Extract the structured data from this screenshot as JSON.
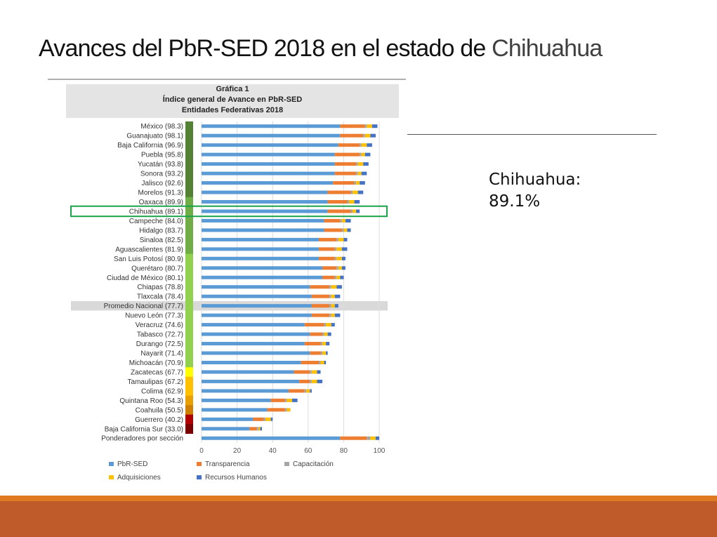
{
  "slide": {
    "title": "Avances del PbR-SED 2018 en el estado de",
    "title_accent": "Chihuahua",
    "callout_line1": "Chihuahua:",
    "callout_line2": "89.1%"
  },
  "figure": {
    "caption_line1": "Gráfica 1",
    "caption_line2": "Índice general de Avance en PbR-SED",
    "caption_line3": "Entidades Federativas 2018"
  },
  "colors": {
    "pbr_sed": "#5b9bd5",
    "transparencia": "#ed7d31",
    "capacitacion": "#a5a5a5",
    "adquisiciones": "#ffc000",
    "recursos_humanos": "#4472c4",
    "highlight_box": "#1aa34a",
    "national_band": "#d9d9d9",
    "orange_bar": "#e07a22",
    "rust_bar": "#bf5a2b"
  },
  "chart_data": {
    "type": "bar",
    "orientation": "horizontal",
    "stacked": true,
    "xlim": [
      0,
      100
    ],
    "x_ticks": [
      0,
      20,
      40,
      60,
      80,
      100
    ],
    "grid": true,
    "legend_position": "bottom",
    "highlight_category": "Chihuahua (89.1)",
    "reference_category": "Promedio Nacional (77.7)",
    "categories": [
      "México (98.3)",
      "Guanajuato (98.1)",
      "Baja California (96.9)",
      "Puebla (95.8)",
      "Yucatán (93.8)",
      "Sonora (93.2)",
      "Jalisco (92.6)",
      "Morelos (91.3)",
      "Oaxaca (89.9)",
      "Chihuahua (89.1)",
      "Campeche (84.0)",
      "Hidalgo (83.7)",
      "Sinaloa (82.5)",
      "Aguascalientes (81.9)",
      "San Luis Potosí (80.9)",
      "Querétaro (80.7)",
      "Ciudad de México (80.1)",
      "Chiapas (78.8)",
      "Tlaxcala (78.4)",
      "Promedio Nacional (77.7)",
      "Nuevo León (77.3)",
      "Veracruz (74.6)",
      "Tabasco (72.7)",
      "Durango (72.5)",
      "Nayarit (71.4)",
      "Michoacán (70.9)",
      "Zacatecas (67.7)",
      "Tamaulipas (67.2)",
      "Colima (62.9)",
      "Quintana Roo (54.3)",
      "Coahuila (50.5)",
      "Guerrero (40.2)",
      "Baja California Sur (33.0)",
      "Ponderadores por sección"
    ],
    "series": [
      {
        "name": "PbR-SED",
        "values": [
          78,
          78,
          77,
          75,
          75,
          75,
          74,
          71,
          71,
          71,
          69,
          69,
          66,
          66,
          66,
          68,
          68,
          61,
          62,
          62,
          62,
          58,
          61,
          58,
          61,
          56,
          52,
          55,
          49,
          39,
          37,
          29,
          27,
          78
        ]
      },
      {
        "name": "Transparencia",
        "values": [
          14,
          13,
          12,
          14,
          12,
          12,
          12,
          13,
          11,
          13,
          9,
          10,
          10,
          9,
          9,
          8,
          7,
          11,
          10,
          10,
          10,
          11,
          7,
          9,
          6,
          10,
          9,
          6,
          9,
          8,
          10,
          6,
          4,
          15
        ]
      },
      {
        "name": "Capacitación",
        "values": [
          1,
          1,
          1,
          1,
          1,
          1,
          1,
          1,
          1,
          1,
          1,
          1,
          1,
          1,
          1,
          1,
          1,
          1,
          1,
          1,
          1,
          1,
          1,
          1,
          1,
          1,
          1,
          1,
          1,
          1,
          1,
          1,
          1,
          2
        ]
      },
      {
        "name": "Adquisiciones",
        "values": [
          3,
          3,
          3,
          2,
          3,
          2,
          2,
          3,
          3,
          2,
          2,
          2,
          3,
          3,
          3,
          2,
          2,
          3,
          2,
          2,
          2,
          3,
          2,
          2,
          2,
          2,
          3,
          3,
          2,
          3,
          2,
          3,
          1,
          3
        ]
      },
      {
        "name": "Recursos Humanos",
        "values": [
          3,
          3,
          3,
          3,
          3,
          3,
          3,
          3,
          3,
          2,
          3,
          2,
          2,
          3,
          2,
          2,
          2,
          3,
          3,
          2,
          3,
          2,
          2,
          2,
          1,
          1,
          2,
          3,
          1,
          3,
          0,
          1,
          1,
          2
        ]
      }
    ],
    "ranking_scale": {
      "values": [
        98.3,
        98.1,
        96.9,
        95.8,
        93.8,
        93.2,
        92.6,
        91.3,
        89.9,
        89.1,
        84.0,
        83.7,
        82.5,
        81.9,
        80.9,
        80.7,
        80.1,
        78.8,
        78.4,
        77.7,
        77.3,
        74.6,
        72.7,
        72.5,
        71.4,
        70.9,
        67.7,
        67.2,
        62.9,
        54.3,
        50.5,
        40.2,
        33.0
      ],
      "colors": [
        "#548235",
        "#548235",
        "#548235",
        "#548235",
        "#548235",
        "#548235",
        "#548235",
        "#548235",
        "#70ad47",
        "#70ad47",
        "#70ad47",
        "#70ad47",
        "#70ad47",
        "#70ad47",
        "#92d050",
        "#92d050",
        "#92d050",
        "#92d050",
        "#92d050",
        "#92d050",
        "#92d050",
        "#92d050",
        "#92d050",
        "#92d050",
        "#92d050",
        "#92d050",
        "#ffff00",
        "#ffc000",
        "#ffc000",
        "#e8a000",
        "#d08000",
        "#b00000",
        "#7a0000"
      ]
    }
  }
}
